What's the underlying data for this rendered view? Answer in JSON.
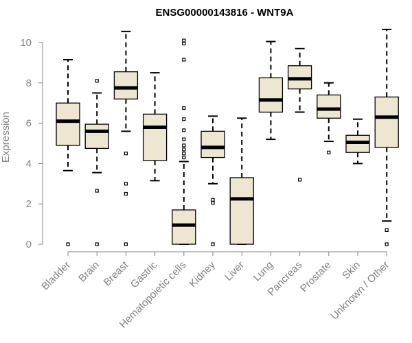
{
  "chart_data": {
    "type": "boxplot",
    "title": "ENSG00000143816 - WNT9A",
    "xlabel": "",
    "ylabel": "Expression",
    "ylim": [
      0,
      10.7
    ],
    "yticks": [
      0,
      2,
      4,
      6,
      8,
      10
    ],
    "box_fill": "#ede6d0",
    "categories": [
      "Bladder",
      "Brain",
      "Breast",
      "Gastric",
      "Hematopoietic cells",
      "Kidney",
      "Liver",
      "Lung",
      "Pancreas",
      "Prostate",
      "Skin",
      "Unknown / Other"
    ],
    "boxes": [
      {
        "name": "Bladder",
        "whisker_low": 3.65,
        "q1": 4.9,
        "median": 6.1,
        "q3": 7.0,
        "whisker_high": 9.15,
        "outliers": [
          0
        ]
      },
      {
        "name": "Brain",
        "whisker_low": 3.55,
        "q1": 4.75,
        "median": 5.6,
        "q3": 5.95,
        "whisker_high": 7.5,
        "outliers": [
          8.1,
          2.65,
          0
        ]
      },
      {
        "name": "Breast",
        "whisker_low": 5.6,
        "q1": 7.2,
        "median": 7.75,
        "q3": 8.55,
        "whisker_high": 10.55,
        "outliers": [
          4.5,
          3.0,
          2.5,
          0
        ]
      },
      {
        "name": "Gastric",
        "whisker_low": 3.15,
        "q1": 4.15,
        "median": 5.8,
        "q3": 6.45,
        "whisker_high": 8.5,
        "outliers": []
      },
      {
        "name": "Hematopoietic cells",
        "whisker_low": 0,
        "q1": 0,
        "median": 0.95,
        "q3": 1.7,
        "whisker_high": 4.1,
        "outliers": [
          10.1,
          9.95,
          9.15,
          6.75,
          6.2,
          5.65,
          5.2,
          4.9,
          4.7,
          4.5,
          4.3
        ]
      },
      {
        "name": "Kidney",
        "whisker_low": 3.0,
        "q1": 4.3,
        "median": 4.8,
        "q3": 5.6,
        "whisker_high": 6.35,
        "outliers": [
          2.2,
          2.05,
          0
        ]
      },
      {
        "name": "Liver",
        "whisker_low": 0,
        "q1": 0,
        "median": 2.25,
        "q3": 3.3,
        "whisker_high": 6.25,
        "outliers": []
      },
      {
        "name": "Lung",
        "whisker_low": 5.2,
        "q1": 6.55,
        "median": 7.15,
        "q3": 8.25,
        "whisker_high": 10.05,
        "outliers": []
      },
      {
        "name": "Pancreas",
        "whisker_low": 6.55,
        "q1": 7.7,
        "median": 8.2,
        "q3": 8.85,
        "whisker_high": 9.7,
        "outliers": [
          3.2
        ]
      },
      {
        "name": "Prostate",
        "whisker_low": 5.1,
        "q1": 6.25,
        "median": 6.7,
        "q3": 7.4,
        "whisker_high": 8.0,
        "outliers": [
          4.55
        ]
      },
      {
        "name": "Skin",
        "whisker_low": 4.0,
        "q1": 4.55,
        "median": 5.05,
        "q3": 5.4,
        "whisker_high": 6.2,
        "outliers": []
      },
      {
        "name": "Unknown / Other",
        "whisker_low": 1.15,
        "q1": 4.8,
        "median": 6.3,
        "q3": 7.3,
        "whisker_high": 10.65,
        "outliers": [
          0.7,
          0
        ]
      }
    ]
  }
}
